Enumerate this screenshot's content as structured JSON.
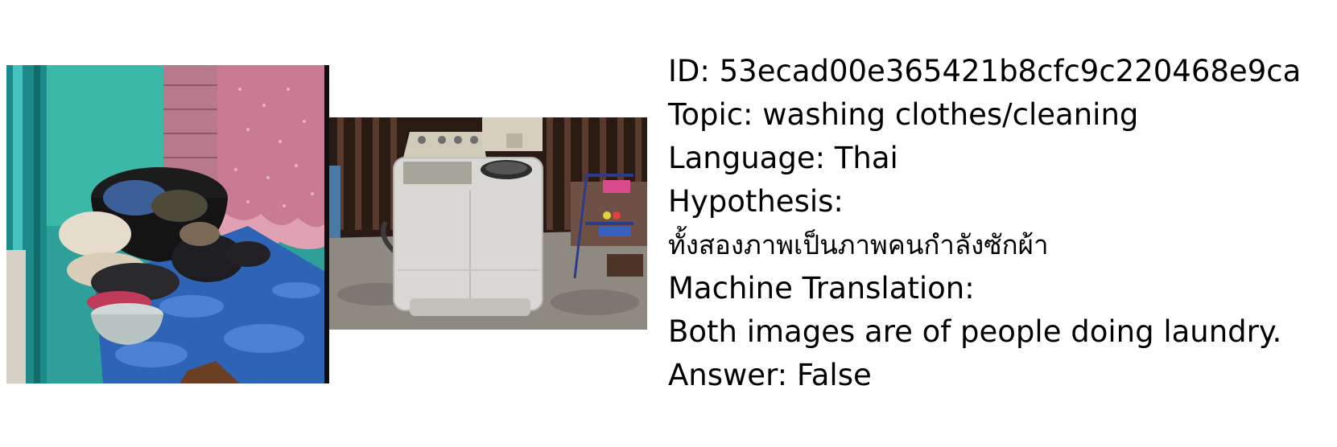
{
  "photos": [
    {
      "subject": "laundry basket with clothes"
    },
    {
      "subject": "twin tub washing machine"
    }
  ],
  "info": {
    "id_line": "ID: 53ecad00e365421b8cfc9c220468e9ca",
    "topic_line": "Topic: washing clothes/cleaning",
    "language_line": "Language: Thai",
    "hypothesis_label": "Hypothesis:",
    "hypothesis_text": "ทั้งสองภาพเป็นภาพคนกำลังซักผ้า",
    "translation_label": "Machine Translation:",
    "translation_text": "Both images are of people doing laundry.",
    "answer_line": "Answer: False"
  },
  "colors": {
    "text": "#000000",
    "background": "#ffffff"
  }
}
